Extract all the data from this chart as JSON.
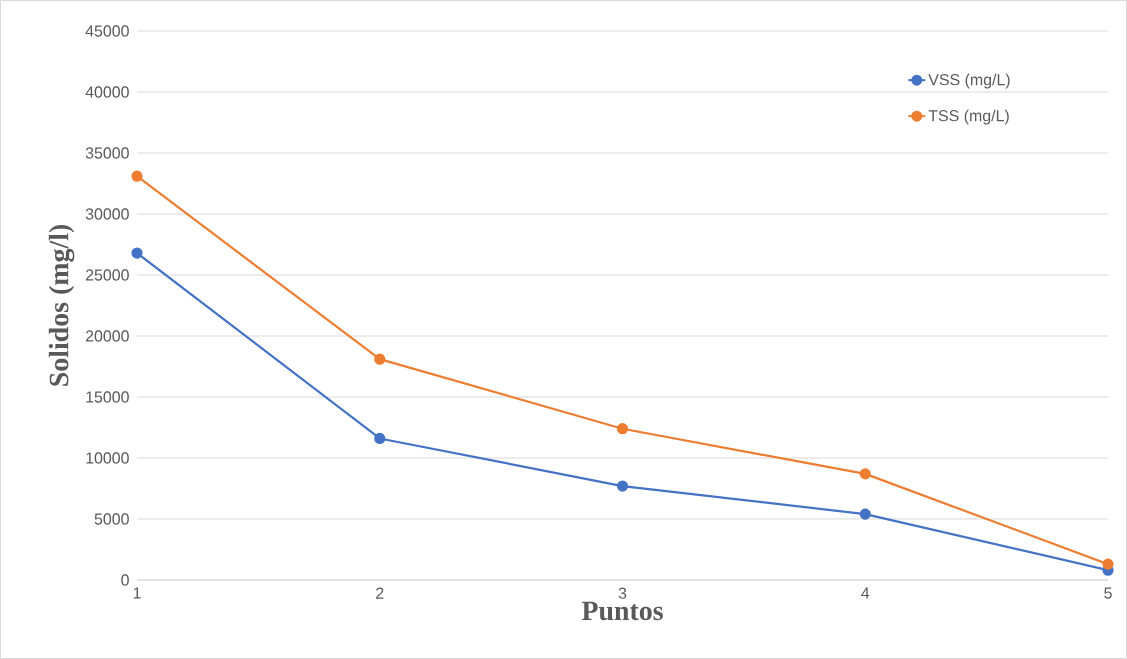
{
  "chart_data": {
    "type": "line",
    "xlabel": "Puntos",
    "ylabel": "Solidos (mg/l)",
    "x": [
      1,
      2,
      3,
      4,
      5
    ],
    "series": [
      {
        "name": "VSS (mg/L)",
        "color": "#4472c4",
        "values": [
          26800,
          11600,
          7700,
          5400,
          800
        ]
      },
      {
        "name": "TSS (mg/L)",
        "color": "#ed7d31",
        "values": [
          33100,
          18100,
          12400,
          8700,
          1300
        ]
      }
    ],
    "xlim": [
      1,
      5
    ],
    "xticks": [
      1,
      2,
      3,
      4,
      5
    ],
    "ylim": [
      0,
      45000
    ],
    "yticks": [
      0,
      5000,
      10000,
      15000,
      20000,
      25000,
      30000,
      35000,
      40000,
      45000
    ],
    "grid": "y",
    "legend": "top right",
    "marker": "circle",
    "line_style": "solid"
  }
}
